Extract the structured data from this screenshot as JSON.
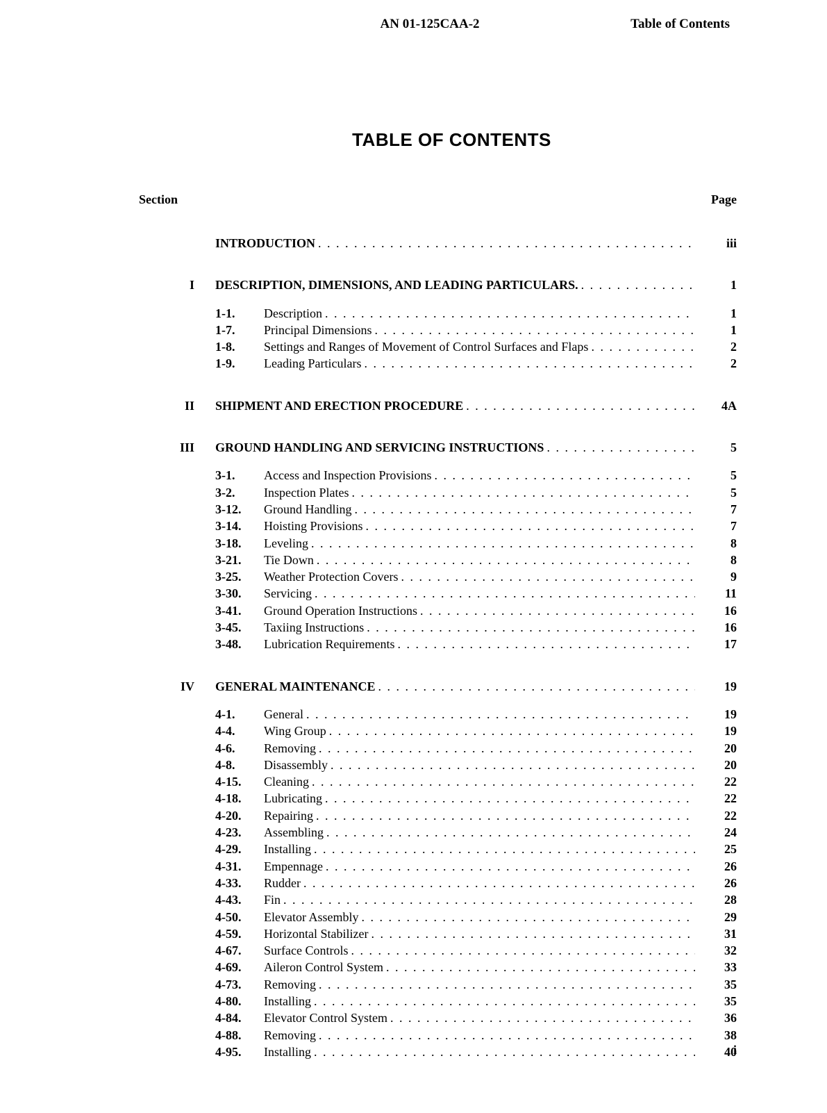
{
  "header": {
    "document_number": "AN 01-125CAA-2",
    "section_label": "Table of Contents"
  },
  "title": "TABLE OF CONTENTS",
  "column_headers": {
    "section": "Section",
    "page": "Page"
  },
  "intro": {
    "title": "INTRODUCTION",
    "page": "iii"
  },
  "sections": [
    {
      "roman": "I",
      "title": "DESCRIPTION, DIMENSIONS, AND LEADING PARTICULARS.",
      "page": "1",
      "entries": [
        {
          "num": "1-1.",
          "title": "Description",
          "page": "1"
        },
        {
          "num": "1-7.",
          "title": "Principal Dimensions",
          "page": "1"
        },
        {
          "num": "1-8.",
          "title": "Settings and Ranges of Movement of Control Surfaces and Flaps",
          "page": "2"
        },
        {
          "num": "1-9.",
          "title": "Leading Particulars",
          "page": "2"
        }
      ]
    },
    {
      "roman": "II",
      "title": "SHIPMENT AND ERECTION PROCEDURE",
      "page": "4A",
      "entries": []
    },
    {
      "roman": "III",
      "title": "GROUND HANDLING AND SERVICING INSTRUCTIONS",
      "page": "5",
      "entries": [
        {
          "num": "3-1.",
          "title": "Access and Inspection Provisions",
          "page": "5"
        },
        {
          "num": "3-2.",
          "title": "Inspection Plates",
          "page": "5"
        },
        {
          "num": "3-12.",
          "title": "Ground Handling",
          "page": "7"
        },
        {
          "num": "3-14.",
          "title": "Hoisting Provisions",
          "page": "7"
        },
        {
          "num": "3-18.",
          "title": "Leveling",
          "page": "8"
        },
        {
          "num": "3-21.",
          "title": "Tie Down",
          "page": "8"
        },
        {
          "num": "3-25.",
          "title": "Weather Protection Covers",
          "page": "9"
        },
        {
          "num": "3-30.",
          "title": "Servicing",
          "page": "11"
        },
        {
          "num": "3-41.",
          "title": "Ground Operation Instructions",
          "page": "16"
        },
        {
          "num": "3-45.",
          "title": "Taxiing Instructions",
          "page": "16"
        },
        {
          "num": "3-48.",
          "title": "Lubrication Requirements",
          "page": "17"
        }
      ]
    },
    {
      "roman": "IV",
      "title": "GENERAL MAINTENANCE",
      "page": "19",
      "entries": [
        {
          "num": "4-1.",
          "title": "General",
          "page": "19"
        },
        {
          "num": "4-4.",
          "title": "Wing Group",
          "page": "19"
        },
        {
          "num": "4-6.",
          "title": "Removing",
          "page": "20"
        },
        {
          "num": "4-8.",
          "title": "Disassembly",
          "page": "20"
        },
        {
          "num": "4-15.",
          "title": "Cleaning",
          "page": "22"
        },
        {
          "num": "4-18.",
          "title": "Lubricating",
          "page": "22"
        },
        {
          "num": "4-20.",
          "title": "Repairing",
          "page": "22"
        },
        {
          "num": "4-23.",
          "title": "Assembling",
          "page": "24"
        },
        {
          "num": "4-29.",
          "title": "Installing",
          "page": "25"
        },
        {
          "num": "4-31.",
          "title": "Empennage",
          "page": "26"
        },
        {
          "num": "4-33.",
          "title": "Rudder",
          "page": "26"
        },
        {
          "num": "4-43.",
          "title": "Fin",
          "page": "28"
        },
        {
          "num": "4-50.",
          "title": "Elevator Assembly",
          "page": "29"
        },
        {
          "num": "4-59.",
          "title": "Horizontal Stabilizer",
          "page": "31"
        },
        {
          "num": "4-67.",
          "title": "Surface Controls",
          "page": "32"
        },
        {
          "num": "4-69.",
          "title": "Aileron Control System",
          "page": "33"
        },
        {
          "num": "4-73.",
          "title": "Removing",
          "page": "35"
        },
        {
          "num": "4-80.",
          "title": "Installing",
          "page": "35"
        },
        {
          "num": "4-84.",
          "title": "Elevator Control System",
          "page": "36"
        },
        {
          "num": "4-88.",
          "title": "Removing",
          "page": "38"
        },
        {
          "num": "4-95.",
          "title": "Installing",
          "page": "40"
        }
      ]
    }
  ],
  "footer_page": "i"
}
